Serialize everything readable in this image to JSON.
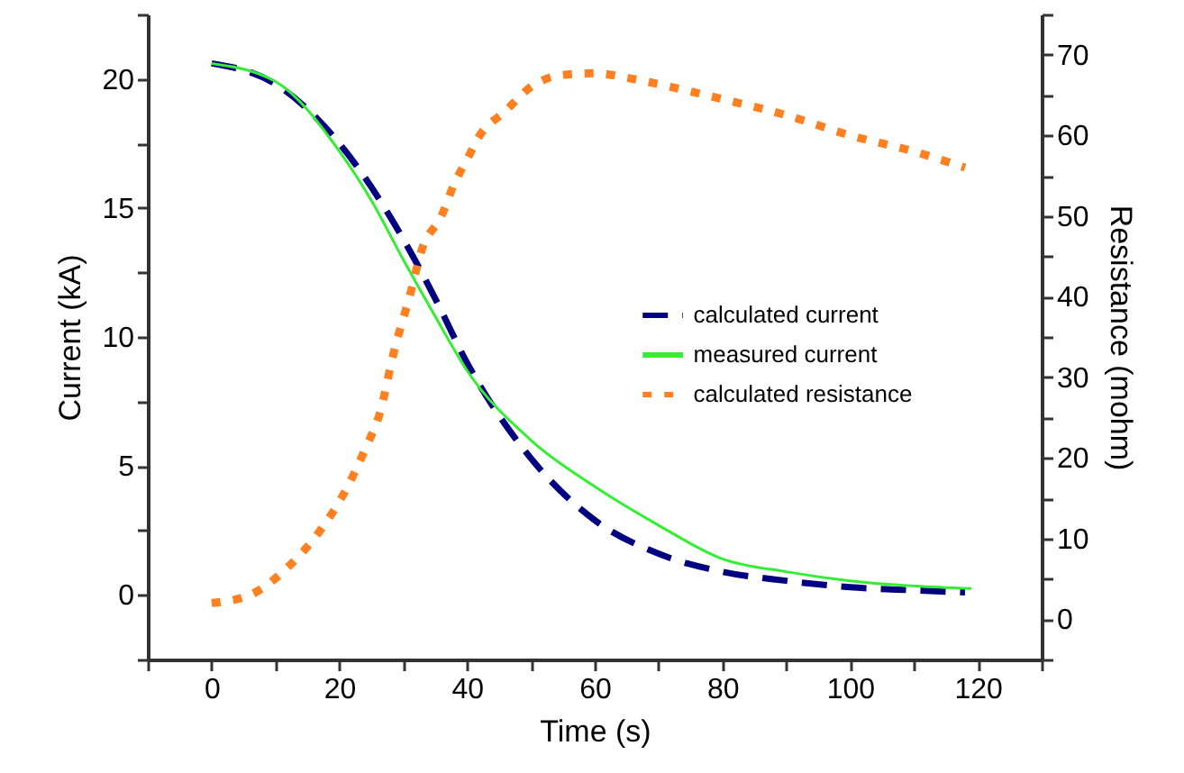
{
  "chart_data": {
    "type": "line",
    "xlabel": "Time  (s)",
    "ylabel": "Current (kA)",
    "y2label": "Resistance (mohm)",
    "xlim": [
      -10,
      130
    ],
    "xticks": [
      {
        "value": -10,
        "label": null
      },
      0,
      {
        "value": 10,
        "label": null
      },
      20,
      {
        "value": 30,
        "label": null
      },
      40,
      {
        "value": 50,
        "label": null
      },
      60,
      {
        "value": 70,
        "label": null
      },
      80,
      {
        "value": 90,
        "label": null
      },
      100,
      {
        "value": 110,
        "label": null
      },
      120,
      {
        "value": 130,
        "label": null
      }
    ],
    "ylim": [
      -2.5,
      22.5
    ],
    "yticks": [
      {
        "value": -2.5,
        "label": null
      },
      0,
      {
        "value": 2.5,
        "label": null
      },
      5,
      {
        "value": 7.5,
        "label": null
      },
      10,
      {
        "value": 12.5,
        "label": null
      },
      15,
      {
        "value": 17.5,
        "label": null
      },
      20,
      {
        "value": 22.5,
        "label": null
      }
    ],
    "y2lim": [
      -5,
      75
    ],
    "y2ticks": [
      {
        "value": -5,
        "label": null
      },
      0,
      {
        "value": 5,
        "label": null
      },
      10,
      {
        "value": 15,
        "label": null
      },
      20,
      {
        "value": 25,
        "label": null
      },
      30,
      {
        "value": 35,
        "label": null
      },
      40,
      {
        "value": 45,
        "label": null
      },
      50,
      {
        "value": 55,
        "label": null
      },
      60,
      {
        "value": 65,
        "label": null
      },
      70,
      {
        "value": 75,
        "label": null
      }
    ],
    "legend": "right",
    "grid": false,
    "series": [
      {
        "name": "calculated current",
        "color": "#000080",
        "line_style": "dashed",
        "x": [
          0,
          10,
          20,
          30,
          35,
          40,
          50,
          60,
          70,
          80,
          90,
          100,
          110,
          118
        ],
        "values": [
          20.6,
          19.8,
          17.5,
          13.8,
          11.5,
          9,
          5.3,
          2.9,
          1.6,
          0.9,
          0.55,
          0.3,
          0.18,
          0.1
        ]
      },
      {
        "name": "measured current",
        "color": "#33ee33",
        "line_style": "solid",
        "x": [
          0,
          10,
          20,
          25,
          30,
          35,
          40,
          50,
          60,
          70,
          80,
          90,
          100,
          110,
          119
        ],
        "values": [
          20.6,
          19.9,
          17.2,
          15.3,
          13,
          10.8,
          8.7,
          6,
          4.2,
          2.7,
          1.4,
          0.9,
          0.55,
          0.35,
          0.25
        ]
      },
      {
        "name": "calculated resistance",
        "color": "#ff8020",
        "line_style": "dotted",
        "axis": "y2",
        "x": [
          0,
          6,
          12,
          17,
          21,
          24,
          26.5,
          28.5,
          31,
          33,
          36,
          38,
          40,
          42,
          46,
          50,
          55,
          60,
          66,
          72,
          80,
          90,
          100,
          110,
          118
        ],
        "values": [
          2,
          3,
          6.5,
          11,
          16,
          21,
          26,
          33,
          40,
          46,
          50,
          54,
          57,
          60,
          63,
          66,
          67.5,
          67.7,
          67,
          66,
          64.5,
          62.5,
          60,
          58,
          56
        ]
      }
    ]
  }
}
